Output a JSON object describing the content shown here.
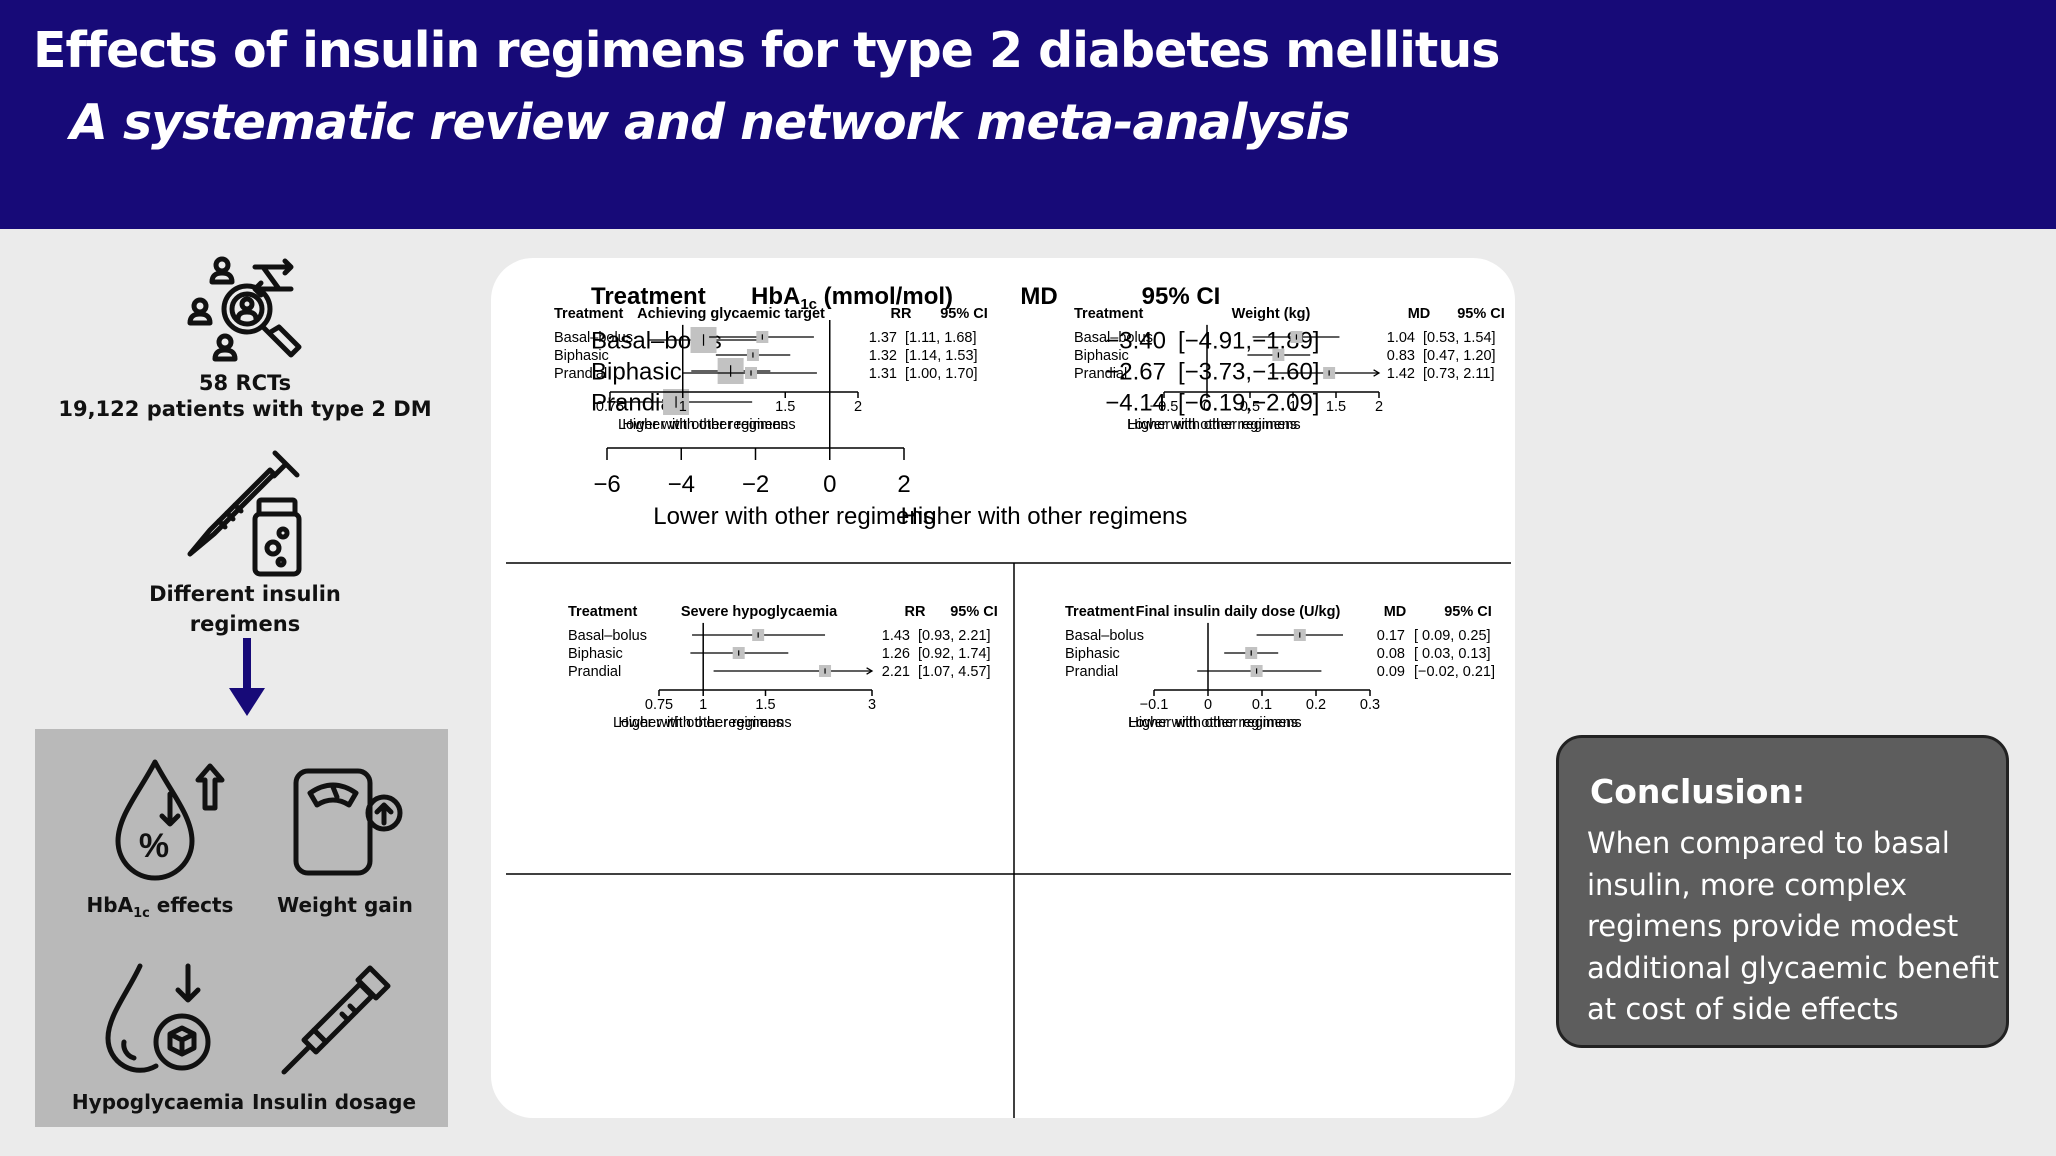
{
  "header": {
    "title": "Effects of insulin regimens for type 2 diabetes mellitus",
    "subtitle": "A systematic review and network meta-analysis"
  },
  "left": {
    "rcts": "58 RCTs",
    "patients": "19,122 patients with type 2 DM",
    "regimens_line1": "Different insulin",
    "regimens_line2": "regimens",
    "outcomes": {
      "hba1c_prefix": "HbA",
      "hba1c_sub": "1c",
      "hba1c_suffix": " effects",
      "weight": "Weight gain",
      "hypo": "Hypoglycaemia",
      "dosage": "Insulin dosage"
    },
    "icons": [
      "patients-search-icon",
      "syringe-vial-icon",
      "arrow-down-icon",
      "drop-percent-icon",
      "scale-icon",
      "drop-box-icon",
      "insulin-pen-icon"
    ]
  },
  "conclusion": {
    "title": "Conclusion:",
    "lines": [
      "When compared to basal",
      "insulin,  more complex",
      "regimens provide modest",
      "additional glycaemic benefit",
      "at cost of side effects"
    ]
  },
  "colors": {
    "header": "#170a78",
    "box": "#bfbfbf",
    "conclusion": "#5d5d5d"
  },
  "chart_data": [
    {
      "type": "forest",
      "col_treatment": "Treatment",
      "title_main": "HbA",
      "title_sub": "1c",
      "title_rest": " (mmol/mol)",
      "col_stat": "MD",
      "col_ci": "95% CI",
      "ref": 0,
      "xlim": [
        -6,
        2
      ],
      "ticks": [
        "−6",
        "−4",
        "−2",
        "0",
        "2"
      ],
      "tick_values": [
        -6,
        -4,
        -2,
        0,
        2
      ],
      "lower_label": "Lower with other regimens",
      "higher_label": "Higher with other regimens",
      "rows": [
        {
          "name": "Basal–bolus",
          "est": -3.4,
          "lo": -4.91,
          "hi": -1.89,
          "est_text": "−3.40",
          "ci_text": "[−4.91,−1.89]"
        },
        {
          "name": "Biphasic",
          "est": -2.67,
          "lo": -3.73,
          "hi": -1.6,
          "est_text": "−2.67",
          "ci_text": "[−3.73,−1.60]"
        },
        {
          "name": "Prandial",
          "est": -4.14,
          "lo": -6.19,
          "hi": -2.09,
          "est_text": "−4.14",
          "ci_text": "[−6.19,−2.09]"
        }
      ]
    },
    {
      "type": "forest",
      "col_treatment": "Treatment",
      "title": "Achieving glycaemic target",
      "col_stat": "RR",
      "col_ci": "95% CI",
      "log_scale": true,
      "ref": 1,
      "xlim": [
        0.75,
        2
      ],
      "ticks": [
        "0.75",
        "1",
        "1.5",
        "2"
      ],
      "tick_values": [
        0.75,
        1,
        1.5,
        2
      ],
      "lower_label": "Lower with other regimens",
      "higher_label": "Higher with other regimens",
      "rows": [
        {
          "name": "Basal–bolus",
          "est": 1.37,
          "lo": 1.11,
          "hi": 1.68,
          "est_text": "1.37",
          "ci_text": "[1.11, 1.68]"
        },
        {
          "name": "Biphasic",
          "est": 1.32,
          "lo": 1.14,
          "hi": 1.53,
          "est_text": "1.32",
          "ci_text": "[1.14, 1.53]"
        },
        {
          "name": "Prandial",
          "est": 1.31,
          "lo": 1.0,
          "hi": 1.7,
          "est_text": "1.31",
          "ci_text": "[1.00, 1.70]"
        }
      ]
    },
    {
      "type": "forest",
      "col_treatment": "Treatment",
      "title": "Weight (kg)",
      "col_stat": "MD",
      "col_ci": "95% CI",
      "ref": 0,
      "xlim": [
        -0.5,
        2
      ],
      "ticks": [
        "−0.5",
        "0",
        "0.5",
        "1",
        "1.5",
        "2"
      ],
      "tick_values": [
        -0.5,
        0,
        0.5,
        1,
        1.5,
        2
      ],
      "lower_label": "Lower with other regimens",
      "higher_label": "Higher with other regimens",
      "rows": [
        {
          "name": "Basal–bolus",
          "est": 1.04,
          "lo": 0.53,
          "hi": 1.54,
          "est_text": "1.04",
          "ci_text": "[0.53, 1.54]"
        },
        {
          "name": "Biphasic",
          "est": 0.83,
          "lo": 0.47,
          "hi": 1.2,
          "est_text": "0.83",
          "ci_text": "[0.47, 1.20]"
        },
        {
          "name": "Prandial",
          "est": 1.42,
          "lo": 0.73,
          "hi": 2.11,
          "est_text": "1.42",
          "ci_text": "[0.73, 2.11]"
        }
      ]
    },
    {
      "type": "forest",
      "col_treatment": "Treatment",
      "title": "Severe hypoglycaemia",
      "col_stat": "RR",
      "col_ci": "95% CI",
      "log_scale": true,
      "ref": 1,
      "xlim": [
        0.75,
        3
      ],
      "ticks": [
        "0.75",
        "1",
        "1.5",
        "3"
      ],
      "tick_values": [
        0.75,
        1,
        1.5,
        3
      ],
      "lower_label": "Lower with other regimens",
      "higher_label": "Higher with other regimens",
      "rows": [
        {
          "name": "Basal–bolus",
          "est": 1.43,
          "lo": 0.93,
          "hi": 2.21,
          "est_text": "1.43",
          "ci_text": "[0.93, 2.21]"
        },
        {
          "name": "Biphasic",
          "est": 1.26,
          "lo": 0.92,
          "hi": 1.74,
          "est_text": "1.26",
          "ci_text": "[0.92, 1.74]"
        },
        {
          "name": "Prandial",
          "est": 2.21,
          "lo": 1.07,
          "hi": 4.57,
          "est_text": "2.21",
          "ci_text": "[1.07, 4.57]"
        }
      ]
    },
    {
      "type": "forest",
      "col_treatment": "Treatment",
      "title": "Final insulin daily dose (U/kg)",
      "col_stat": "MD",
      "col_ci": "95% CI",
      "ref": 0,
      "xlim": [
        -0.1,
        0.3
      ],
      "ticks": [
        "−0.1",
        "0",
        "0.1",
        "0.2",
        "0.3"
      ],
      "tick_values": [
        -0.1,
        0,
        0.1,
        0.2,
        0.3
      ],
      "lower_label": "Lower with other regimens",
      "higher_label": "Higher with other regimens",
      "rows": [
        {
          "name": "Basal–bolus",
          "est": 0.17,
          "lo": 0.09,
          "hi": 0.25,
          "est_text": "0.17",
          "ci_text": "[ 0.09, 0.25]"
        },
        {
          "name": "Biphasic",
          "est": 0.08,
          "lo": 0.03,
          "hi": 0.13,
          "est_text": "0.08",
          "ci_text": "[ 0.03, 0.13]"
        },
        {
          "name": "Prandial",
          "est": 0.09,
          "lo": -0.02,
          "hi": 0.21,
          "est_text": "0.09",
          "ci_text": "[−0.02, 0.21]"
        }
      ]
    }
  ]
}
